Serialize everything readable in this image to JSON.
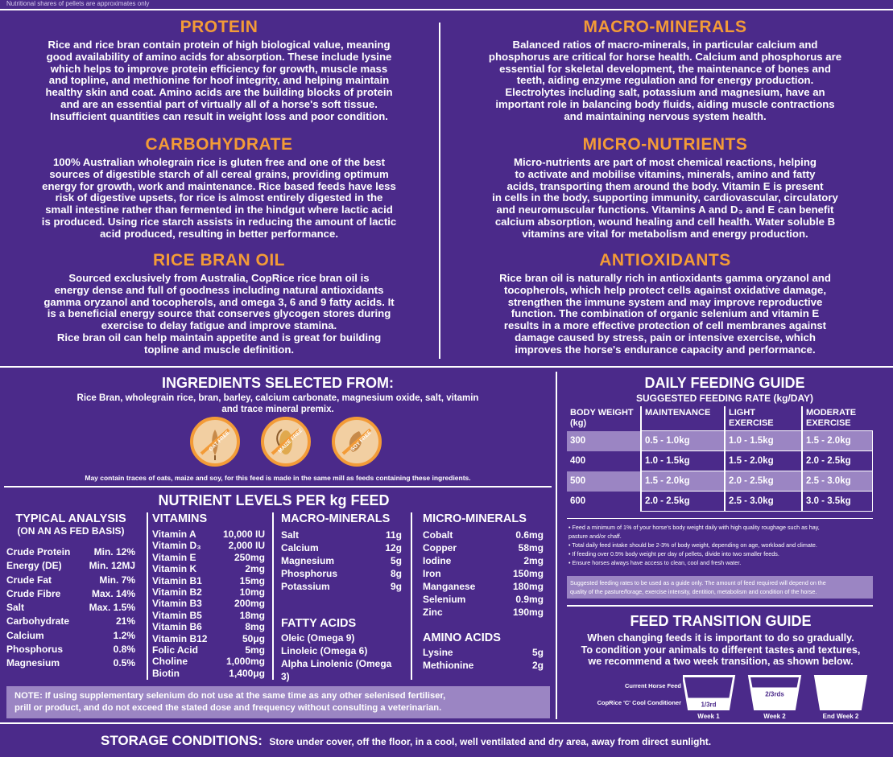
{
  "top_note": "Nutritional shares of pellets are approximates only",
  "protein": {
    "title": "PROTEIN",
    "lines": [
      "Rice and rice bran contain protein of high biological value, meaning",
      "good availability of amino acids for absorption. These include lysine",
      "which helps to improve protein efficiency for growth, muscle mass",
      "and topline, and methionine for hoof integrity, and helping maintain",
      "healthy skin and coat. Amino acids are the building blocks of protein",
      "and are an essential part of virtually all of a horse's soft tissue.",
      "Insufficient quantities can result in weight loss and poor condition."
    ]
  },
  "carbohydrate": {
    "title": "CARBOHYDRATE",
    "lines": [
      "100% Australian wholegrain rice is gluten free and one of the best",
      "sources of digestible starch of all cereal grains, providing optimum",
      "energy for growth, work and maintenance. Rice based feeds have less",
      "risk of digestive upsets, for rice is almost entirely digested in the",
      "small intestine rather than fermented in the hindgut where lactic acid",
      "is produced. Using rice starch assists in reducing the amount of lactic",
      "acid produced, resulting in better performance."
    ]
  },
  "rice_bran_oil": {
    "title": "RICE BRAN OIL",
    "lines": [
      "Sourced exclusively from Australia, CopRice rice bran oil is",
      "energy dense and full of goodness including natural antioxidants",
      "gamma oryzanol and tocopherols, and omega 3, 6 and 9 fatty acids. It",
      "is a beneficial energy source that conserves glycogen stores during",
      "exercise to delay fatigue and improve stamina.",
      "Rice bran oil can help maintain appetite and is great for building",
      "topline and muscle definition."
    ]
  },
  "macro_minerals": {
    "title": "MACRO-MINERALS",
    "lines": [
      "Balanced ratios of macro-minerals, in particular calcium and",
      "phosphorus are critical for horse health. Calcium and phosphorus are",
      "essential for skeletal development, the maintenance of bones and",
      "teeth, aiding enzyme regulation and for energy production.",
      "Electrolytes including salt, potassium and magnesium, have an",
      "important role in balancing body fluids, aiding muscle contractions",
      "and maintaining nervous system health."
    ]
  },
  "micro_nutrients": {
    "title": "MICRO-NUTRIENTS",
    "lines": [
      "Micro-nutrients are part of most chemical reactions, helping",
      "to activate and mobilise vitamins, minerals, amino and fatty",
      "acids, transporting them around the body. Vitamin E is present",
      "in cells in the body, supporting immunity, cardiovascular, circulatory",
      "and neuromuscular functions. Vitamins A and D₃ and E can benefit",
      "calcium absorption, wound healing and cell health. Water soluble B",
      "vitamins are vital for metabolism and energy production."
    ]
  },
  "antioxidants": {
    "title": "ANTIOXIDANTS",
    "lines": [
      "Rice bran oil is naturally rich in antioxidants gamma oryzanol and",
      "tocopherols, which help protect cells against oxidative damage,",
      "strengthen the immune system and may improve reproductive",
      "function. The combination of organic selenium and vitamin E",
      "results in a more effective protection of cell membranes against",
      "damage caused by stress, pain or intensive exercise, which",
      "improves the horse's endurance capacity and performance."
    ]
  },
  "ingredients": {
    "title": "INGREDIENTS SELECTED FROM:",
    "line1": "Rice Bran, wholegrain rice, bran, barley, calcium carbonate, magnesium oxide, salt, vitamin",
    "line2": "and trace mineral premix.",
    "badges": [
      {
        "label": "OAT FREE",
        "icon": "oat-icon"
      },
      {
        "label": "MAIZE FREE",
        "icon": "maize-icon"
      },
      {
        "label": "SOY FREE",
        "icon": "soy-icon"
      }
    ],
    "traces": "May contain traces of oats, maize and soy, for this feed is made in the same mill as feeds containing these ingredients."
  },
  "nutrients": {
    "title": "NUTRIENT LEVELS PER kg FEED",
    "typical": {
      "title1": "TYPICAL ANALYSIS",
      "title2": "(ON AN AS FED BASIS)",
      "rows": [
        [
          "Crude Protein",
          "Min. 12%"
        ],
        [
          "Energy (DE)",
          "Min. 12MJ"
        ],
        [
          "Crude Fat",
          "Min. 7%"
        ],
        [
          "Crude Fibre",
          "Max. 14%"
        ],
        [
          "Salt",
          "Max. 1.5%"
        ],
        [
          "Carbohydrate",
          "21%"
        ],
        [
          "Calcium",
          "1.2%"
        ],
        [
          "Phosphorus",
          "0.8%"
        ],
        [
          "Magnesium",
          "0.5%"
        ]
      ]
    },
    "vitamins": {
      "title": "VITAMINS",
      "rows": [
        [
          "Vitamin A",
          "10,000 IU"
        ],
        [
          "Vitamin D₃",
          "2,000 IU"
        ],
        [
          "Vitamin E",
          "250mg"
        ],
        [
          "Vitamin K",
          "2mg"
        ],
        [
          "Vitamin B1",
          "15mg"
        ],
        [
          "Vitamin B2",
          "10mg"
        ],
        [
          "Vitamin B3",
          "200mg"
        ],
        [
          "Vitamin B5",
          "18mg"
        ],
        [
          "Vitamin B6",
          "8mg"
        ],
        [
          "Vitamin B12",
          "50μg"
        ],
        [
          "Folic Acid",
          "5mg"
        ],
        [
          "Choline",
          "1,000mg"
        ],
        [
          "Biotin",
          "1,400μg"
        ]
      ]
    },
    "macro": {
      "title": "MACRO-MINERALS",
      "rows": [
        [
          "Salt",
          "11g"
        ],
        [
          "Calcium",
          "12g"
        ],
        [
          "Magnesium",
          "5g"
        ],
        [
          "Phosphorus",
          "8g"
        ],
        [
          "Potassium",
          "9g"
        ]
      ]
    },
    "fatty": {
      "title": "FATTY ACIDS",
      "rows": [
        "Oleic (Omega 9)",
        "Linoleic (Omega 6)",
        "Alpha Linolenic (Omega 3)"
      ]
    },
    "micro": {
      "title": "MICRO-MINERALS",
      "rows": [
        [
          "Cobalt",
          "0.6mg"
        ],
        [
          "Copper",
          "58mg"
        ],
        [
          "Iodine",
          "2mg"
        ],
        [
          "Iron",
          "150mg"
        ],
        [
          "Manganese",
          "180mg"
        ],
        [
          "Selenium",
          "0.9mg"
        ],
        [
          "Zinc",
          "190mg"
        ]
      ]
    },
    "amino": {
      "title": "AMINO ACIDS",
      "rows": [
        [
          "Lysine",
          "5g"
        ],
        [
          "Methionine",
          "2g"
        ]
      ]
    },
    "note1": "NOTE:  If using supplementary selenium do not use at the same time as any other selenised fertiliser,",
    "note2": "prill or product, and do not exceed the stated dose and frequency without consulting a veterinarian."
  },
  "feeding": {
    "title": "DAILY FEEDING GUIDE",
    "subtitle": "SUGGESTED FEEDING RATE (kg/DAY)",
    "headers": [
      "BODY WEIGHT (kg)",
      "MAINTENANCE",
      "LIGHT EXERCISE",
      "MODERATE EXERCISE"
    ],
    "rows": [
      [
        "300",
        "0.5 - 1.0kg",
        "1.0 - 1.5kg",
        "1.5 - 2.0kg"
      ],
      [
        "400",
        "1.0 - 1.5kg",
        "1.5 - 2.0kg",
        "2.0 - 2.5kg"
      ],
      [
        "500",
        "1.5 - 2.0kg",
        "2.0 - 2.5kg",
        "2.5 - 3.0kg"
      ],
      [
        "600",
        "2.0 - 2.5kg",
        "2.5 - 3.0kg",
        "3.0 - 3.5kg"
      ]
    ],
    "bullets": [
      "• Feed a minimum of 1% of your horse's body weight daily with high quality roughage such as hay,",
      "  pasture and/or chaff.",
      "• Total daily feed intake should be 2-3% of body weight, depending on age, workload and climate.",
      "• If feeding over 0.5% body weight per day of pellets, divide into two smaller feeds.",
      "• Ensure horses always have access to clean, cool and fresh water."
    ],
    "note": [
      "Suggested feeding rates to be used as a guide only. The amount of feed required will depend on the",
      "quality of the pasture/forage, exercise intensity, dentition, metabolism and condition of the horse."
    ]
  },
  "transition": {
    "title": "FEED TRANSITION GUIDE",
    "lines": [
      "When changing feeds it is important to do so gradually.",
      "To condition your animals to different tastes and textures,",
      "we recommend a two week transition, as shown below."
    ],
    "legend_current": "Current Horse Feed",
    "legend_new": "CopRice 'C' Cool Conditioner",
    "buckets": [
      {
        "fill_label": "1/3rd",
        "week": "Week 1",
        "fill": 0.67
      },
      {
        "fill_label": "2/3rds",
        "week": "Week 2",
        "fill": 0.33
      },
      {
        "fill_label": "",
        "week": "End Week 2",
        "fill": 0.0
      }
    ]
  },
  "storage": {
    "title": "STORAGE CONDITIONS:",
    "text": "Store under cover, off the floor, in a cool, well ventilated and dry area, away from direct sunlight."
  }
}
